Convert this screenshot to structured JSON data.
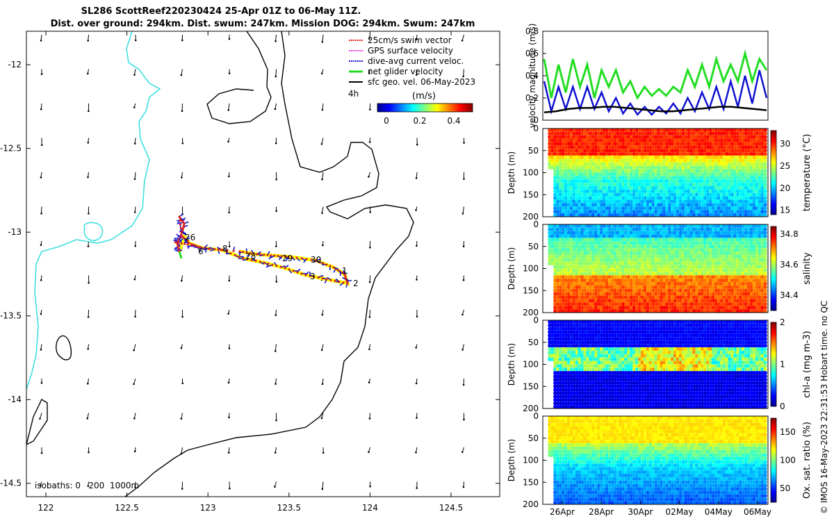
{
  "title": {
    "line1": "SL286 ScottReef220230424 25-Apr 01Z to 06-May 11Z.",
    "line2": "Dist. over ground: 294km. Dist. swum: 247km. Mission DOG: 294km. Swum: 247km"
  },
  "colors": {
    "coast": "#40e0e0",
    "isobath": "#000000",
    "velocity_net": "#22dd22",
    "velocity_current": "#1010d0",
    "velocity_sfc": "#000000",
    "gps": "#dd44dd",
    "swim": "#dd2222"
  },
  "map": {
    "xticks": [
      122,
      122.5,
      123,
      123.5,
      124,
      124.5
    ],
    "xtick_labels": [
      "122",
      "122.5",
      "123",
      "123.5",
      "124",
      "124.5"
    ],
    "yticks": [
      -12,
      -12.5,
      -13,
      -13.5,
      -14,
      -14.5
    ],
    "ytick_labels": [
      "-12",
      "-12.5",
      "-13",
      "-13.5",
      "-14",
      "-14.5"
    ],
    "xlim": [
      121.88,
      124.8
    ],
    "ylim": [
      -14.58,
      -11.8
    ],
    "legend": [
      {
        "label": "25cm/s swim vector",
        "color_key": "swim"
      },
      {
        "label": "GPS surface velocity",
        "color_key": "gps"
      },
      {
        "label": "dive-avg current veloc.",
        "color_key": "velocity_current"
      },
      {
        "label": "net glider velocity",
        "color_key": "velocity_net"
      },
      {
        "label": "sfc geo. vel. 06-May-2023",
        "color_key": "velocity_sfc"
      }
    ],
    "annotation_4h": "4h",
    "colorbar_title": "(m/s)",
    "colorbar_ticks": [
      "0",
      "0.2",
      "0.4"
    ],
    "isobaths_label": "isobaths: 0   200  1000m",
    "day_labels": [
      "26",
      "6",
      "8",
      "28",
      "29",
      "30",
      "1",
      "2",
      "3"
    ]
  },
  "chart_data": [
    {
      "type": "line",
      "title": "",
      "ylabel": "velocity magnitude (m/s)",
      "ylim": [
        0,
        0.8
      ],
      "yticks": [
        "0",
        "0.2",
        "0.4",
        "0.6",
        "0.8"
      ],
      "series": [
        {
          "name": "net glider velocity",
          "values": [
            0.55,
            0.2,
            0.5,
            0.25,
            0.55,
            0.3,
            0.5,
            0.2,
            0.45,
            0.3,
            0.45,
            0.25,
            0.35,
            0.2,
            0.3,
            0.22,
            0.28,
            0.22,
            0.3,
            0.25,
            0.45,
            0.3,
            0.5,
            0.3,
            0.55,
            0.35,
            0.5,
            0.35,
            0.6,
            0.35,
            0.55,
            0.45
          ]
        },
        {
          "name": "dive-avg current veloc.",
          "values": [
            0.35,
            0.08,
            0.3,
            0.1,
            0.3,
            0.1,
            0.3,
            0.1,
            0.25,
            0.08,
            0.2,
            0.06,
            0.15,
            0.05,
            0.12,
            0.05,
            0.12,
            0.06,
            0.15,
            0.06,
            0.2,
            0.08,
            0.25,
            0.1,
            0.3,
            0.1,
            0.35,
            0.12,
            0.4,
            0.15,
            0.45,
            0.2
          ]
        },
        {
          "name": "sfc geo. vel.",
          "values": [
            0.07,
            0.08,
            0.1,
            0.11,
            0.11,
            0.12,
            0.12,
            0.11,
            0.1,
            0.09,
            0.08,
            0.08,
            0.09,
            0.1,
            0.11,
            0.12,
            0.12,
            0.11,
            0.1,
            0.09
          ]
        }
      ]
    },
    {
      "type": "heatmap",
      "ylabel": "Depth (m)",
      "yticks": [
        "0",
        "50",
        "100",
        "150",
        "200"
      ],
      "cbar_label": "temperature (°C)",
      "cbar_ticks": [
        "15",
        "20",
        "25",
        "30"
      ],
      "cbar_range": [
        14,
        33
      ]
    },
    {
      "type": "heatmap",
      "ylabel": "Depth (m)",
      "yticks": [
        "0",
        "50",
        "100",
        "150",
        "200"
      ],
      "cbar_label": "salinity",
      "cbar_ticks": [
        "34.4",
        "34.6",
        "34.8"
      ],
      "cbar_range": [
        34.3,
        34.85
      ]
    },
    {
      "type": "heatmap",
      "ylabel": "Depth (m)",
      "yticks": [
        "0",
        "50",
        "100",
        "150",
        "200"
      ],
      "cbar_label": "chl-a (mg m-3)",
      "cbar_ticks": [
        "0",
        "1",
        "2"
      ],
      "cbar_range": [
        0,
        2
      ]
    },
    {
      "type": "heatmap",
      "ylabel": "Depth (m)",
      "yticks": [
        "0",
        "50",
        "100",
        "150",
        "200"
      ],
      "cbar_label": "Ox. sat. ratio (%)",
      "cbar_ticks": [
        "50",
        "100",
        "150"
      ],
      "cbar_range": [
        25,
        175
      ]
    }
  ],
  "time_axis": {
    "labels": [
      "26Apr",
      "28Apr",
      "30Apr",
      "02May",
      "04May",
      "06May"
    ]
  },
  "credit": "© IMOS 16-May-2023 22:31:53 Hobart time. no QC"
}
